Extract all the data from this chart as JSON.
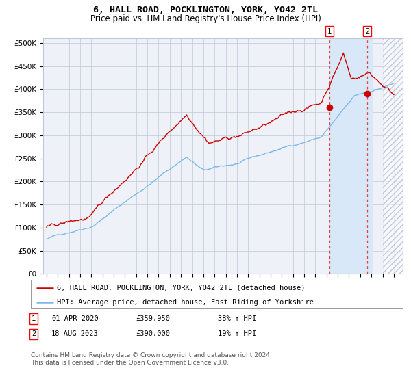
{
  "title": "6, HALL ROAD, POCKLINGTON, YORK, YO42 2TL",
  "subtitle": "Price paid vs. HM Land Registry's House Price Index (HPI)",
  "ylabel_ticks": [
    "£0",
    "£50K",
    "£100K",
    "£150K",
    "£200K",
    "£250K",
    "£300K",
    "£350K",
    "£400K",
    "£450K",
    "£500K"
  ],
  "ytick_values": [
    0,
    50000,
    100000,
    150000,
    200000,
    250000,
    300000,
    350000,
    400000,
    450000,
    500000
  ],
  "ylim": [
    0,
    510000
  ],
  "xlim_start": 1994.7,
  "xlim_end": 2026.8,
  "hpi_line_color": "#7ab8e8",
  "price_line_color": "#cc0000",
  "marker_color": "#cc0000",
  "sale1_x": 2020.25,
  "sale1_y": 359950,
  "sale2_x": 2023.62,
  "sale2_y": 390000,
  "sale1_label": "1",
  "sale2_label": "2",
  "legend_line1": "6, HALL ROAD, POCKLINGTON, YORK, YO42 2TL (detached house)",
  "legend_line2": "HPI: Average price, detached house, East Riding of Yorkshire",
  "table_row1": [
    "1",
    "01-APR-2020",
    "£359,950",
    "38% ↑ HPI"
  ],
  "table_row2": [
    "2",
    "18-AUG-2023",
    "£390,000",
    "19% ↑ HPI"
  ],
  "footnote1": "Contains HM Land Registry data © Crown copyright and database right 2024.",
  "footnote2": "This data is licensed under the Open Government Licence v3.0.",
  "bg_color": "#ffffff",
  "plot_bg_color": "#eef2f8",
  "shade_color": "#d8e8f8",
  "grid_color": "#c0c8d8",
  "hatch_color": "#c0c8d8",
  "title_fontsize": 9.5,
  "subtitle_fontsize": 8.5,
  "axis_fontsize": 7.5,
  "legend_fontsize": 7.5,
  "table_fontsize": 7.5,
  "footnote_fontsize": 6.5
}
